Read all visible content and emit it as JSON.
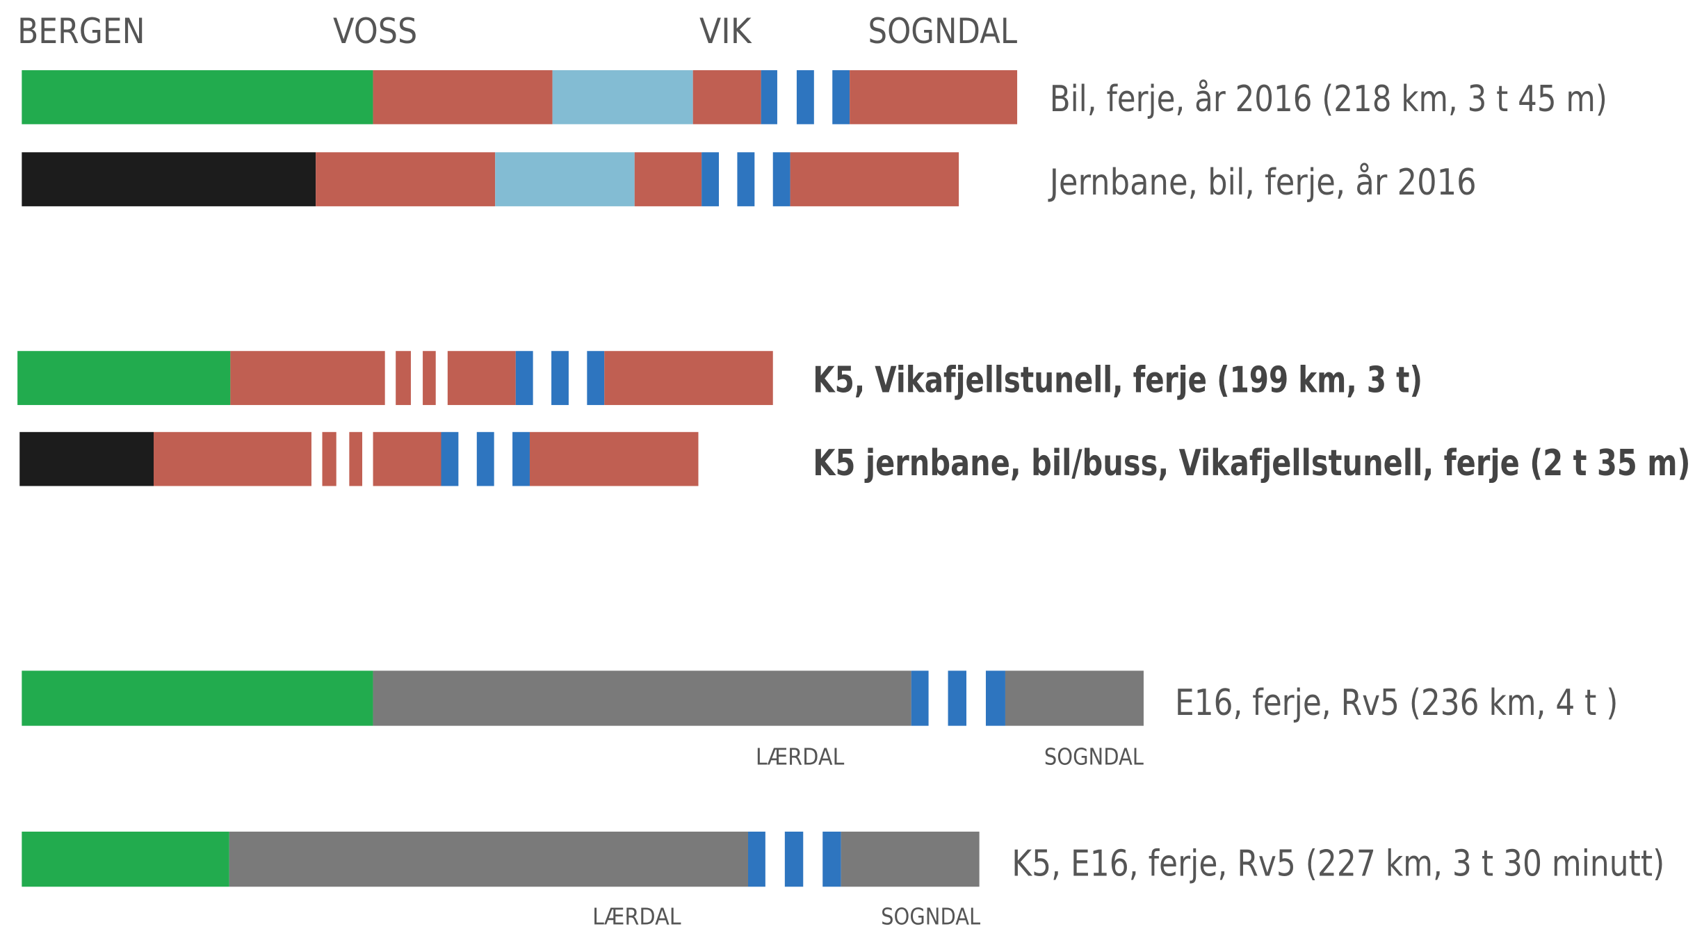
{
  "places": [
    "BERGEN",
    "VOSS",
    "VIK",
    "SOGNDAL"
  ],
  "routes": [
    {
      "label": "Bil, ferje, år 2016  (218 km, 3 t 45 m)"
    },
    {
      "label": "Jernbane, bil, ferje, år 2016"
    },
    {
      "label": "K5, Vikafjellstunell, ferje (199 km, 3 t)"
    },
    {
      "label": "K5 jernbane, bil/buss, Vikafjellstunell, ferje (2 t 35 m)"
    },
    {
      "label": "E16, ferje, Rv5  (236 km, 4 t )",
      "stops": [
        "LÆRDAL",
        "SOGNDAL"
      ]
    },
    {
      "label": "K5, E16, ferje, Rv5  (227 km, 3 t 30 minutt)",
      "stops": [
        "LÆRDAL",
        "SOGNDAL"
      ]
    }
  ]
}
